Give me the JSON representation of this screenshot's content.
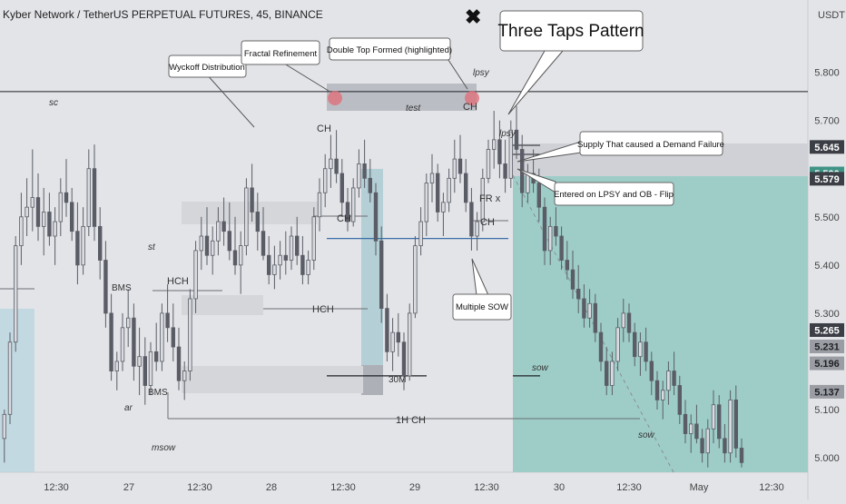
{
  "header": {
    "title": "Kyber Network / TetherUS PERPETUAL FUTURES, 45, BINANCE",
    "currency": "USDT",
    "close_symbol": "✖"
  },
  "colors": {
    "background": "#e3e4e8",
    "candle": "#5a5d66",
    "target_zone": "#9ecdc8",
    "stop_zone": "#cfd1d6",
    "level_line": "#1f2126",
    "mid_line": "#3a6fa6",
    "ob_zone": "#a7c9cf",
    "tap": "#e0707a"
  },
  "chart_data": {
    "type": "candlestick",
    "title": "Kyber Network / TetherUS PERPETUAL FUTURES, 45, BINANCE",
    "y_unit": "USDT",
    "ylim": [
      4.97,
      5.95
    ],
    "y_ticks": [
      5.8,
      5.7,
      5.5,
      5.4,
      5.3,
      5.1,
      5.0
    ],
    "x_ticks": [
      "12:30",
      "27",
      "12:30",
      "28",
      "12:30",
      "29",
      "12:30",
      "30",
      "12:30",
      "May",
      "12:30"
    ],
    "price_labels": [
      {
        "value": 5.645,
        "label": "5.645",
        "style": "dark"
      },
      {
        "value": 5.59,
        "label": "5.590",
        "style": "green"
      },
      {
        "value": 5.579,
        "label": "5.579",
        "style": "dark"
      },
      {
        "value": 5.265,
        "label": "5.265",
        "style": "dark"
      },
      {
        "value": 5.231,
        "label": "5.231",
        "style": "grey"
      },
      {
        "value": 5.196,
        "label": "5.196",
        "style": "grey"
      },
      {
        "value": 5.137,
        "label": "5.137",
        "style": "grey"
      }
    ],
    "series": [
      {
        "candles": [
          [
            5.04,
            5.1,
            4.99,
            5.09
          ],
          [
            5.09,
            5.26,
            5.07,
            5.24
          ],
          [
            5.24,
            5.46,
            5.22,
            5.44
          ],
          [
            5.44,
            5.55,
            5.4,
            5.5
          ],
          [
            5.5,
            5.58,
            5.46,
            5.52
          ],
          [
            5.52,
            5.64,
            5.47,
            5.54
          ],
          [
            5.54,
            5.59,
            5.45,
            5.48
          ],
          [
            5.48,
            5.56,
            5.42,
            5.51
          ],
          [
            5.51,
            5.55,
            5.44,
            5.46
          ],
          [
            5.46,
            5.52,
            5.4,
            5.49
          ],
          [
            5.49,
            5.58,
            5.46,
            5.55
          ],
          [
            5.55,
            5.62,
            5.5,
            5.53
          ],
          [
            5.53,
            5.56,
            5.45,
            5.47
          ],
          [
            5.47,
            5.53,
            5.36,
            5.4
          ],
          [
            5.4,
            5.52,
            5.38,
            5.48
          ],
          [
            5.48,
            5.64,
            5.46,
            5.6
          ],
          [
            5.6,
            5.65,
            5.45,
            5.48
          ],
          [
            5.48,
            5.52,
            5.37,
            5.41
          ],
          [
            5.41,
            5.45,
            5.27,
            5.3
          ],
          [
            5.3,
            5.34,
            5.16,
            5.18
          ],
          [
            5.18,
            5.22,
            5.14,
            5.2
          ],
          [
            5.2,
            5.3,
            5.18,
            5.27
          ],
          [
            5.27,
            5.35,
            5.23,
            5.29
          ],
          [
            5.29,
            5.32,
            5.16,
            5.19
          ],
          [
            5.19,
            5.27,
            5.13,
            5.21
          ],
          [
            5.21,
            5.25,
            5.11,
            5.15
          ],
          [
            5.15,
            5.24,
            5.13,
            5.22
          ],
          [
            5.22,
            5.28,
            5.18,
            5.2
          ],
          [
            5.2,
            5.32,
            5.18,
            5.3
          ],
          [
            5.3,
            5.36,
            5.24,
            5.27
          ],
          [
            5.27,
            5.32,
            5.2,
            5.23
          ],
          [
            5.23,
            5.27,
            5.14,
            5.16
          ],
          [
            5.16,
            5.2,
            5.12,
            5.18
          ],
          [
            5.18,
            5.35,
            5.16,
            5.33
          ],
          [
            5.33,
            5.45,
            5.3,
            5.43
          ],
          [
            5.43,
            5.5,
            5.39,
            5.46
          ],
          [
            5.46,
            5.52,
            5.4,
            5.42
          ],
          [
            5.42,
            5.48,
            5.38,
            5.45
          ],
          [
            5.45,
            5.52,
            5.42,
            5.49
          ],
          [
            5.49,
            5.54,
            5.44,
            5.47
          ],
          [
            5.47,
            5.53,
            5.41,
            5.43
          ],
          [
            5.43,
            5.5,
            5.38,
            5.4
          ],
          [
            5.4,
            5.47,
            5.34,
            5.44
          ],
          [
            5.44,
            5.58,
            5.42,
            5.56
          ],
          [
            5.56,
            5.61,
            5.49,
            5.51
          ],
          [
            5.51,
            5.55,
            5.43,
            5.47
          ],
          [
            5.47,
            5.52,
            5.41,
            5.42
          ],
          [
            5.42,
            5.46,
            5.36,
            5.38
          ],
          [
            5.38,
            5.44,
            5.35,
            5.4
          ],
          [
            5.4,
            5.45,
            5.37,
            5.42
          ],
          [
            5.42,
            5.47,
            5.38,
            5.41
          ],
          [
            5.41,
            5.48,
            5.39,
            5.46
          ],
          [
            5.46,
            5.5,
            5.4,
            5.42
          ],
          [
            5.42,
            5.46,
            5.36,
            5.38
          ],
          [
            5.38,
            5.43,
            5.36,
            5.41
          ],
          [
            5.41,
            5.52,
            5.39,
            5.5
          ],
          [
            5.5,
            5.58,
            5.47,
            5.55
          ],
          [
            5.55,
            5.63,
            5.52,
            5.6
          ],
          [
            5.6,
            5.67,
            5.56,
            5.62
          ],
          [
            5.62,
            5.68,
            5.57,
            5.59
          ],
          [
            5.59,
            5.62,
            5.5,
            5.53
          ],
          [
            5.53,
            5.56,
            5.47,
            5.49
          ],
          [
            5.49,
            5.58,
            5.48,
            5.56
          ],
          [
            5.56,
            5.64,
            5.54,
            5.61
          ],
          [
            5.61,
            5.66,
            5.56,
            5.58
          ],
          [
            5.58,
            5.62,
            5.53,
            5.55
          ],
          [
            5.55,
            5.57,
            5.42,
            5.45
          ],
          [
            5.45,
            5.48,
            5.28,
            5.31
          ],
          [
            5.31,
            5.34,
            5.2,
            5.22
          ],
          [
            5.22,
            5.29,
            5.18,
            5.26
          ],
          [
            5.26,
            5.3,
            5.21,
            5.24
          ],
          [
            5.24,
            5.26,
            5.14,
            5.17
          ],
          [
            5.17,
            5.32,
            5.16,
            5.3
          ],
          [
            5.3,
            5.46,
            5.29,
            5.44
          ],
          [
            5.44,
            5.52,
            5.42,
            5.49
          ],
          [
            5.49,
            5.59,
            5.46,
            5.57
          ],
          [
            5.57,
            5.63,
            5.53,
            5.59
          ],
          [
            5.59,
            5.61,
            5.49,
            5.51
          ],
          [
            5.51,
            5.55,
            5.46,
            5.53
          ],
          [
            5.53,
            5.6,
            5.51,
            5.58
          ],
          [
            5.58,
            5.66,
            5.55,
            5.62
          ],
          [
            5.62,
            5.67,
            5.57,
            5.59
          ],
          [
            5.59,
            5.62,
            5.51,
            5.53
          ],
          [
            5.53,
            5.56,
            5.43,
            5.46
          ],
          [
            5.46,
            5.51,
            5.43,
            5.49
          ],
          [
            5.49,
            5.6,
            5.47,
            5.58
          ],
          [
            5.58,
            5.66,
            5.57,
            5.64
          ],
          [
            5.64,
            5.72,
            5.6,
            5.66
          ],
          [
            5.66,
            5.7,
            5.58,
            5.61
          ],
          [
            5.61,
            5.66,
            5.55,
            5.58
          ],
          [
            5.58,
            5.7,
            5.56,
            5.68
          ],
          [
            5.68,
            5.73,
            5.62,
            5.64
          ],
          [
            5.64,
            5.67,
            5.52,
            5.55
          ],
          [
            5.55,
            5.61,
            5.53,
            5.59
          ],
          [
            5.59,
            5.64,
            5.55,
            5.57
          ],
          [
            5.57,
            5.6,
            5.49,
            5.52
          ],
          [
            5.52,
            5.54,
            5.4,
            5.43
          ],
          [
            5.43,
            5.5,
            5.4,
            5.48
          ],
          [
            5.48,
            5.52,
            5.44,
            5.46
          ],
          [
            5.46,
            5.48,
            5.39,
            5.41
          ],
          [
            5.41,
            5.45,
            5.37,
            5.39
          ],
          [
            5.39,
            5.43,
            5.33,
            5.35
          ],
          [
            5.35,
            5.4,
            5.3,
            5.33
          ],
          [
            5.33,
            5.36,
            5.27,
            5.29
          ],
          [
            5.29,
            5.35,
            5.27,
            5.32
          ],
          [
            5.32,
            5.34,
            5.24,
            5.26
          ],
          [
            5.26,
            5.28,
            5.18,
            5.2
          ],
          [
            5.2,
            5.23,
            5.13,
            5.15
          ],
          [
            5.15,
            5.22,
            5.13,
            5.2
          ],
          [
            5.2,
            5.29,
            5.18,
            5.27
          ],
          [
            5.27,
            5.33,
            5.24,
            5.3
          ],
          [
            5.3,
            5.32,
            5.24,
            5.26
          ],
          [
            5.26,
            5.28,
            5.19,
            5.21
          ],
          [
            5.21,
            5.26,
            5.17,
            5.24
          ],
          [
            5.24,
            5.27,
            5.18,
            5.2
          ],
          [
            5.2,
            5.22,
            5.13,
            5.16
          ],
          [
            5.16,
            5.18,
            5.1,
            5.12
          ],
          [
            5.12,
            5.16,
            5.08,
            5.14
          ],
          [
            5.14,
            5.2,
            5.11,
            5.18
          ],
          [
            5.18,
            5.22,
            5.13,
            5.15
          ],
          [
            5.15,
            5.17,
            5.07,
            5.09
          ],
          [
            5.09,
            5.12,
            5.03,
            5.05
          ],
          [
            5.05,
            5.09,
            5.01,
            5.07
          ],
          [
            5.07,
            5.11,
            5.03,
            5.04
          ],
          [
            5.04,
            5.06,
            4.99,
            5.01
          ],
          [
            5.01,
            5.08,
            4.98,
            5.06
          ],
          [
            5.06,
            5.14,
            5.03,
            5.11
          ],
          [
            5.11,
            5.13,
            5.02,
            5.04
          ],
          [
            5.04,
            5.07,
            4.99,
            5.01
          ],
          [
            5.01,
            5.14,
            4.99,
            5.12
          ],
          [
            5.12,
            5.15,
            5.0,
            5.02
          ],
          [
            5.02,
            5.04,
            4.98,
            4.99
          ]
        ]
      }
    ],
    "levels": [
      {
        "name": "tap-level",
        "value": 5.76
      },
      {
        "name": "mid-level",
        "value": 5.455
      },
      {
        "name": "30m-level",
        "value": 5.17
      },
      {
        "name": "sow-level",
        "value": 5.17
      }
    ]
  },
  "annotations": {
    "wyckoff": "Wyckoff Distribution",
    "fractal": "Fractal Refinement",
    "double_top": "Double Top Formed (highlighted)",
    "three_taps": "Three Taps Pattern",
    "supply": "Supply That caused a Demand Failure",
    "entered": "Entered on LPSY and OB - Flip",
    "multiple_sow": "Multiple SOW"
  },
  "labels": {
    "sc": "sc",
    "st": "st",
    "ar": "ar",
    "msow": "msow",
    "bms1": "BMS",
    "bms2": "BMS",
    "hch1": "HCH",
    "hch2": "HCH",
    "ch1": "CH",
    "ch2": "CH",
    "ch3": "CH",
    "ch4": "CH",
    "lpsy1": "lpsy",
    "lpsy2": "lpsy",
    "test": "test",
    "fr": "FR x",
    "m30": "30M",
    "h1ch": "1H CH",
    "sow1": "sow",
    "sow2": "sow"
  }
}
